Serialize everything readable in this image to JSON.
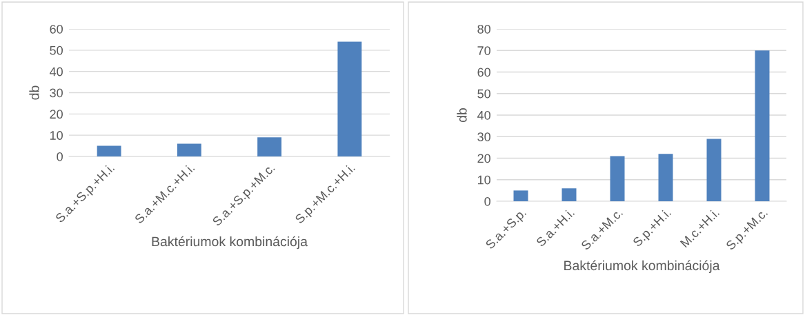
{
  "chart_data": [
    {
      "type": "bar",
      "categories": [
        "S.a.+S.p.+H.i.",
        "S.a.+M.c.+H.i.",
        "S.a.+S.p.+M.c.",
        "S.p.+M.c.+H.i."
      ],
      "values": [
        5,
        6,
        9,
        54
      ],
      "color": "#4f81bd",
      "xlabel": "Baktériumok kombinációja",
      "ylabel": "db",
      "ylim": [
        0,
        60
      ],
      "yticks": [
        0,
        10,
        20,
        30,
        40,
        50,
        60
      ],
      "grid": "y"
    },
    {
      "type": "bar",
      "categories": [
        "S.a.+S.p.",
        "S.a.+H.i.",
        "S.a.+M.c.",
        "S.p.+H.i.",
        "M.c.+H.i.",
        "S.p.+M.c."
      ],
      "values": [
        5,
        6,
        21,
        22,
        29,
        70
      ],
      "color": "#4f81bd",
      "xlabel": "Baktériumok kombinációja",
      "ylabel": "db",
      "ylim": [
        0,
        80
      ],
      "yticks": [
        0,
        10,
        20,
        30,
        40,
        50,
        60,
        70,
        80
      ],
      "grid": "y"
    }
  ]
}
